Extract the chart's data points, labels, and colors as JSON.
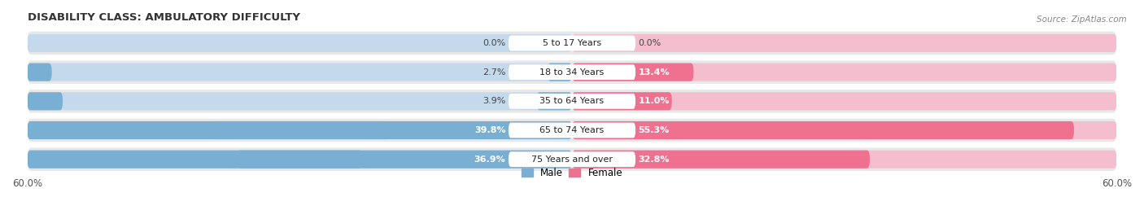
{
  "title": "DISABILITY CLASS: AMBULATORY DIFFICULTY",
  "source": "Source: ZipAtlas.com",
  "categories": [
    "5 to 17 Years",
    "18 to 34 Years",
    "35 to 64 Years",
    "65 to 74 Years",
    "75 Years and over"
  ],
  "male_values": [
    0.0,
    2.7,
    3.9,
    39.8,
    36.9
  ],
  "female_values": [
    0.0,
    13.4,
    11.0,
    55.3,
    32.8
  ],
  "max_val": 60.0,
  "male_color": "#7aafd4",
  "female_color": "#f07090",
  "male_bg_color": "#c5d9ed",
  "female_bg_color": "#f5bece",
  "row_bg_color": "#e8e8e8",
  "label_color": "#444444",
  "title_color": "#333333",
  "bar_height": 0.62,
  "legend_male": "Male",
  "legend_female": "Female"
}
